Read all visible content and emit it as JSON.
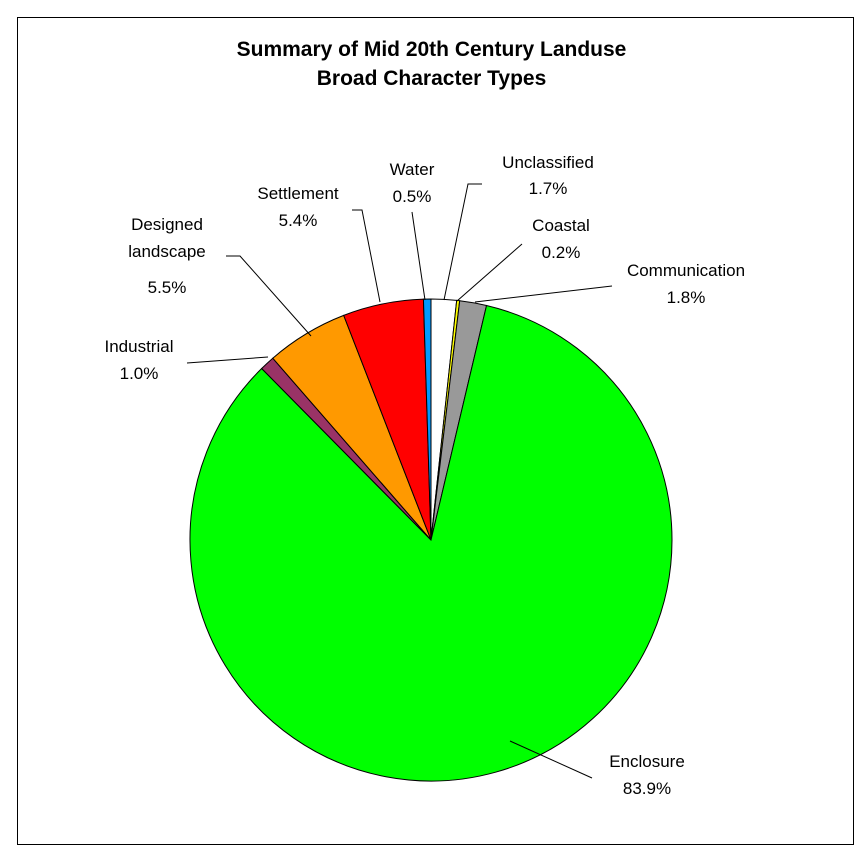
{
  "chart_data": {
    "type": "pie",
    "title": "Summary of Mid 20th Century Landuse",
    "subtitle": "Broad Character Types",
    "slices": [
      {
        "label": "Unclassified",
        "value": 1.7,
        "value_label": "1.7%",
        "color": "#ffffff"
      },
      {
        "label": "Coastal",
        "value": 0.2,
        "value_label": "0.2%",
        "color": "#ffff00"
      },
      {
        "label": "Communication",
        "value": 1.8,
        "value_label": "1.8%",
        "color": "#999999"
      },
      {
        "label": "Enclosure",
        "value": 83.9,
        "value_label": "83.9%",
        "color": "#00ff00"
      },
      {
        "label": "Industrial",
        "value": 1.0,
        "value_label": "1.0%",
        "color": "#993366"
      },
      {
        "label": "Designed landscape",
        "value": 5.5,
        "value_label": "5.5%",
        "color": "#ff9900"
      },
      {
        "label": "Settlement",
        "value": 5.4,
        "value_label": "5.4%",
        "color": "#ff0000"
      },
      {
        "label": "Water",
        "value": 0.5,
        "value_label": "0.5%",
        "color": "#0099ff"
      }
    ]
  }
}
